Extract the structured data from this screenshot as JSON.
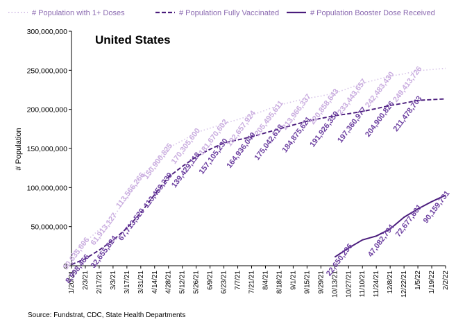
{
  "chart_data": {
    "type": "line",
    "title": "United States",
    "ylabel": "# Population",
    "xlabel": "",
    "source": "Source: Fundstrat, CDC, State Health Departments",
    "ylim": [
      0,
      300000000
    ],
    "yticks": [
      "0",
      "50,000,000",
      "100,000,000",
      "150,000,000",
      "200,000,000",
      "250,000,000",
      "300,000,000"
    ],
    "yticks_values": [
      0,
      50000000,
      100000000,
      150000000,
      200000000,
      250000000,
      300000000
    ],
    "xlim_week": [
      0,
      54
    ],
    "xticks": [
      "1/20/21",
      "2/3/21",
      "2/17/21",
      "3/3/21",
      "3/17/21",
      "3/31/21",
      "4/14/21",
      "4/28/21",
      "5/12/21",
      "5/26/21",
      "6/9/21",
      "6/23/21",
      "7/7/21",
      "7/21/21",
      "8/4/21",
      "8/18/21",
      "9/1/21",
      "9/15/21",
      "9/29/21",
      "10/13/21",
      "10/27/21",
      "11/10/21",
      "11/24/21",
      "12/8/21",
      "12/22/21",
      "1/5/22",
      "1/19/22",
      "2/2/22"
    ],
    "legend": {
      "position": "top"
    },
    "colors": {
      "one_dose": "#d7c4e8",
      "full": "#4a1c7c",
      "booster": "#4a1c7c",
      "one_dose_label": "#c9acdf",
      "full_label": "#6c3fa0",
      "booster_label": "#6c3fa0"
    },
    "series": [
      {
        "name": "# Population with 1+ Doses",
        "style": "dotted",
        "points": [
          [
            "1/20/21",
            15000000
          ],
          [
            "2/3/21",
            30635606
          ],
          [
            "2/17/21",
            46000000
          ],
          [
            "3/3/21",
            61913127
          ],
          [
            "3/17/21",
            87000000
          ],
          [
            "3/31/21",
            113566266
          ],
          [
            "4/14/21",
            132000000
          ],
          [
            "4/28/21",
            150900825
          ],
          [
            "5/12/21",
            160000000
          ],
          [
            "5/26/21",
            170305600
          ],
          [
            "6/9/21",
            176000000
          ],
          [
            "6/23/21",
            181670602
          ],
          [
            "7/7/21",
            187000000
          ],
          [
            "7/21/21",
            192657924
          ],
          [
            "8/4/21",
            199000000
          ],
          [
            "8/18/21",
            205495611
          ],
          [
            "9/1/21",
            210000000
          ],
          [
            "9/15/21",
            213966337
          ],
          [
            "9/29/21",
            217000000
          ],
          [
            "10/13/21",
            220858643
          ],
          [
            "10/27/21",
            227000000
          ],
          [
            "11/10/21",
            233443657
          ],
          [
            "11/24/21",
            238000000
          ],
          [
            "12/8/21",
            242483430
          ],
          [
            "12/22/21",
            245500000
          ],
          [
            "1/5/22",
            249413726
          ],
          [
            "1/19/22",
            251000000
          ],
          [
            "2/2/22",
            252500000
          ]
        ],
        "labels": [
          {
            "date": "2/3/21",
            "text": "30,635,606"
          },
          {
            "date": "3/3/21",
            "text": "61,913,127"
          },
          {
            "date": "3/31/21",
            "text": "113,566,266"
          },
          {
            "date": "4/28/21",
            "text": "150,900,825"
          },
          {
            "date": "5/26/21",
            "text": "170,305,600"
          },
          {
            "date": "6/23/21",
            "text": "181,670,602"
          },
          {
            "date": "7/21/21",
            "text": "192,657,924"
          },
          {
            "date": "8/18/21",
            "text": "205,495,611"
          },
          {
            "date": "9/15/21",
            "text": "213,966,337"
          },
          {
            "date": "10/13/21",
            "text": "220,858,643"
          },
          {
            "date": "11/10/21",
            "text": "233,443,657"
          },
          {
            "date": "12/8/21",
            "text": "242,483,430"
          },
          {
            "date": "1/5/22",
            "text": "249,413,726"
          }
        ]
      },
      {
        "name": "# Population Fully Vaccinated",
        "style": "dashed",
        "points": [
          [
            "1/20/21",
            1500000
          ],
          [
            "2/3/21",
            8998466
          ],
          [
            "2/17/21",
            20000000
          ],
          [
            "3/3/21",
            32655824
          ],
          [
            "3/17/21",
            48000000
          ],
          [
            "3/31/21",
            67713520
          ],
          [
            "4/14/21",
            91000000
          ],
          [
            "4/28/21",
            113458239
          ],
          [
            "5/12/21",
            127000000
          ],
          [
            "5/26/21",
            139429118
          ],
          [
            "6/9/21",
            149000000
          ],
          [
            "6/23/21",
            157105230
          ],
          [
            "7/7/21",
            161000000
          ],
          [
            "7/21/21",
            164936049
          ],
          [
            "8/4/21",
            170000000
          ],
          [
            "8/18/21",
            175042618
          ],
          [
            "9/1/21",
            180000000
          ],
          [
            "9/15/21",
            184875621
          ],
          [
            "9/29/21",
            188500000
          ],
          [
            "10/13/21",
            191926359
          ],
          [
            "10/27/21",
            194500000
          ],
          [
            "11/10/21",
            197360977
          ],
          [
            "11/24/21",
            201000000
          ],
          [
            "12/8/21",
            204900826
          ],
          [
            "12/22/21",
            208000000
          ],
          [
            "1/5/22",
            211478703
          ],
          [
            "1/19/22",
            212500000
          ],
          [
            "2/2/22",
            213500000
          ]
        ],
        "labels": [
          {
            "date": "2/3/21",
            "text": "8,998,466"
          },
          {
            "date": "3/3/21",
            "text": "32,655,824"
          },
          {
            "date": "3/31/21",
            "text": "67,713,520"
          },
          {
            "date": "4/28/21",
            "text": "113,458,239"
          },
          {
            "date": "5/26/21",
            "text": "139,429,118"
          },
          {
            "date": "6/23/21",
            "text": "157,105,230"
          },
          {
            "date": "7/21/21",
            "text": "164,936,049"
          },
          {
            "date": "8/18/21",
            "text": "175,042,618"
          },
          {
            "date": "9/15/21",
            "text": "184,875,621"
          },
          {
            "date": "10/13/21",
            "text": "191,926,359"
          },
          {
            "date": "11/10/21",
            "text": "197,360,977"
          },
          {
            "date": "12/8/21",
            "text": "204,900,826"
          },
          {
            "date": "1/5/22",
            "text": "211,478,703"
          }
        ]
      },
      {
        "name": "# Population Booster Dose Received",
        "style": "solid",
        "points": [
          [
            "10/13/21",
            11000000
          ],
          [
            "10/27/21",
            22650296
          ],
          [
            "11/10/21",
            33000000
          ],
          [
            "11/24/21",
            38000000
          ],
          [
            "12/8/21",
            47082794
          ],
          [
            "12/22/21",
            62000000
          ],
          [
            "1/5/22",
            72677601
          ],
          [
            "1/19/22",
            82000000
          ],
          [
            "2/2/22",
            90159731
          ]
        ],
        "labels": [
          {
            "date": "10/27/21",
            "text": "22,650,296"
          },
          {
            "date": "12/8/21",
            "text": "47,082,794"
          },
          {
            "date": "1/5/22",
            "text": "72,677,601"
          },
          {
            "date": "2/2/22",
            "text": "90,159,731"
          }
        ]
      }
    ]
  }
}
